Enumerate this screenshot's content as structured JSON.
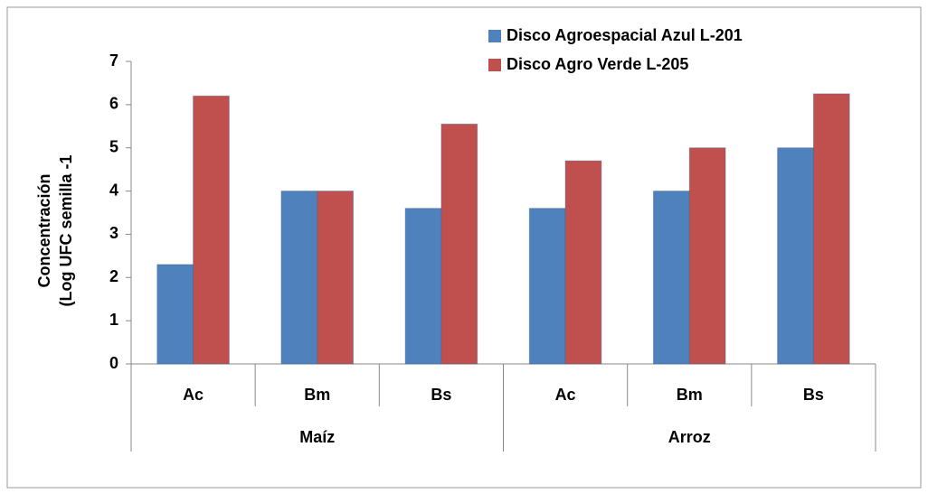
{
  "chart_data": {
    "type": "bar",
    "ylabel": [
      "Concentración",
      "(Log UFC semilla -1"
    ],
    "groups": [
      {
        "name": "Maíz",
        "categories": [
          "Ac",
          "Bm",
          "Bs"
        ]
      },
      {
        "name": "Arroz",
        "categories": [
          "Ac",
          "Bm",
          "Bs"
        ]
      }
    ],
    "series": [
      {
        "name": "Disco Agroespacial Azul L-201",
        "color": "#4f81bd",
        "values": [
          2.3,
          4.0,
          3.6,
          3.6,
          4.0,
          5.0
        ]
      },
      {
        "name": "Disco Agro Verde L-205",
        "color": "#c0504d",
        "values": [
          6.2,
          4.0,
          5.55,
          4.7,
          5.0,
          6.25
        ]
      }
    ],
    "ylim": [
      0,
      7
    ],
    "yticks": [
      0,
      1,
      2,
      3,
      4,
      5,
      6,
      7
    ],
    "legend": "top-right"
  }
}
